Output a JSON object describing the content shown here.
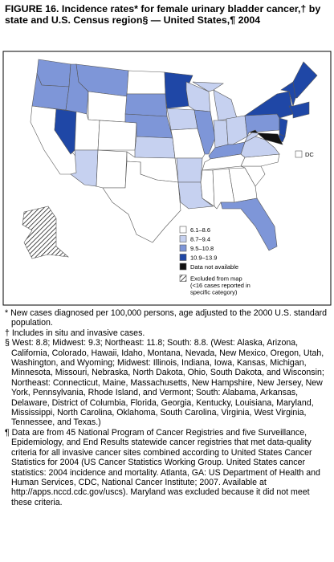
{
  "header": {
    "title": "FIGURE 16. Incidence rates* for female urinary bladder cancer,† by state and U.S. Census region§ — United States,¶ 2004"
  },
  "map": {
    "dc_label": "DC"
  },
  "legend": {
    "items": [
      {
        "label": "6.1–8.6",
        "color": "#ffffff"
      },
      {
        "label": "8.7–9.4",
        "color": "#c6d1f0"
      },
      {
        "label": "9.5–10.8",
        "color": "#7e96d8"
      },
      {
        "label": "10.9–13.9",
        "color": "#1f47a6"
      },
      {
        "label": "Data not available",
        "color": "#111111"
      }
    ],
    "excluded": "Excluded from map (<16 cases reported in specific category)"
  },
  "footnotes": [
    "* New cases diagnosed per 100,000 persons, age adjusted to the 2000 U.S. standard population.",
    "† Includes in situ and invasive cases.",
    "§ West: 8.8; Midwest: 9.3; Northeast: 11.8; South: 8.8. (West: Alaska, Arizona, California, Colorado, Hawaii, Idaho, Montana, Nevada, New Mexico, Oregon, Utah, Washington, and Wyoming; Midwest: Illinois, Indiana, Iowa, Kansas, Michigan, Minnesota, Missouri, Nebraska, North Dakota, Ohio, South Dakota, and Wisconsin; Northeast: Connecticut, Maine, Massachusetts, New Hampshire, New Jersey, New York, Pennsylvania, Rhode Island, and Vermont; South: Alabama, Arkansas, Delaware, District of Columbia, Florida, Georgia, Kentucky, Louisiana, Maryland, Mississippi, North Carolina, Oklahoma, South Carolina, Virginia, West Virginia, Tennessee, and Texas.)",
    "¶ Data are from 45 National Program of Cancer Registries and five Surveillance, Epidemiology, and End Results statewide cancer registries that met data-quality criteria for all invasive cancer sites combined according to United States Cancer Statistics for 2004 (US Cancer Statistics Working Group. United States cancer statistics: 2004 incidence and mortality. Atlanta, GA: US Department of Health and Human Services, CDC, National Cancer Institute; 2007. Available at http://apps.nccd.cdc.gov/uscs). Maryland was excluded because it did not meet these criteria."
  ]
}
